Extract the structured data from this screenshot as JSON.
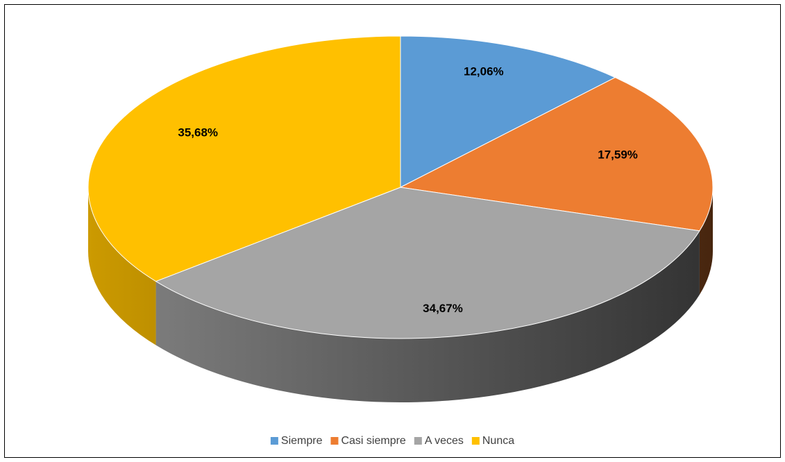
{
  "chart_data": {
    "type": "pie",
    "categories": [
      "Siempre",
      "Casi siempre",
      "A veces",
      "Nunca"
    ],
    "values": [
      12.06,
      17.59,
      34.67,
      35.68
    ],
    "value_labels": [
      "12,06%",
      "17,59%",
      "34,67%",
      "35,68%"
    ],
    "colors": [
      "#5b9bd5",
      "#ed7d31",
      "#a5a5a5",
      "#ffc000"
    ],
    "legend": "bottom"
  }
}
